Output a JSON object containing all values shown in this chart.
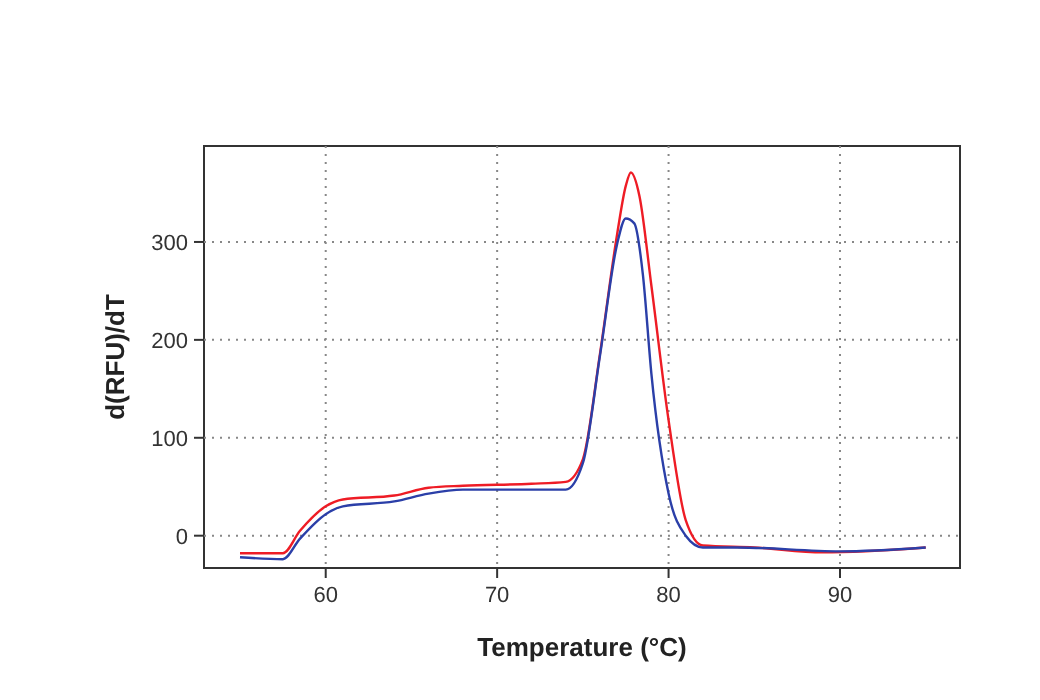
{
  "chart_data": {
    "type": "line",
    "xlabel": "Temperature (°C)",
    "ylabel": "d(RFU)/dT",
    "xlim": [
      52.9,
      97
    ],
    "xticks": [
      60,
      70,
      80,
      90
    ],
    "ylim": [
      -33,
      398
    ],
    "yticks": [
      0,
      100,
      200,
      300
    ],
    "grid": true,
    "series": [
      {
        "color": "#ee1c25",
        "x": [
          55,
          57.5,
          58.5,
          60,
          61,
          64,
          66,
          68,
          72,
          74,
          75,
          76,
          77,
          77.5,
          77.8,
          78.3,
          79,
          80,
          81,
          82,
          85,
          89,
          95
        ],
        "values": [
          -18,
          -18,
          5,
          30,
          37,
          41,
          49,
          51,
          53,
          55,
          78,
          186,
          308,
          357,
          371,
          347,
          255,
          118,
          16,
          -10,
          -12,
          -17,
          -12
        ]
      },
      {
        "color": "#2b3fa8",
        "x": [
          55,
          57.5,
          58.5,
          60,
          61,
          64,
          66,
          68,
          72,
          74,
          75,
          76,
          77,
          77.5,
          78,
          78.5,
          79,
          80,
          81,
          82,
          84,
          90,
          95
        ],
        "values": [
          -22,
          -24,
          -3,
          22,
          30,
          35,
          43,
          47,
          47,
          47,
          74,
          184,
          298,
          324,
          319,
          267,
          165,
          43,
          0,
          -12,
          -12,
          -16,
          -12
        ]
      }
    ]
  }
}
